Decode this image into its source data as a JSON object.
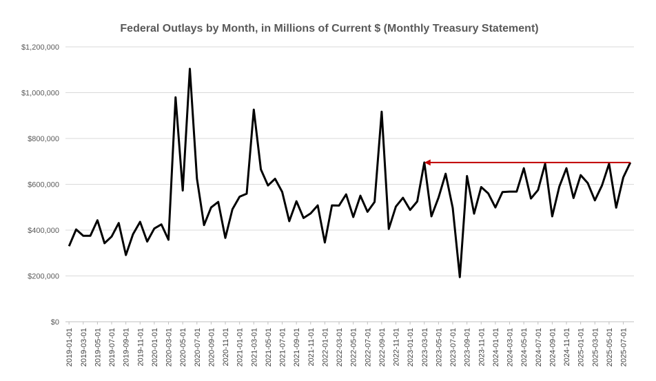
{
  "chart_data": {
    "type": "line",
    "title": "Federal Outlays by Month, in Millions of Current $ (Monthly Treasury Statement)",
    "xlabel": "",
    "ylabel": "",
    "ylim": [
      0,
      1200000
    ],
    "y_ticks": [
      0,
      200000,
      400000,
      600000,
      800000,
      1000000,
      1200000
    ],
    "y_tick_labels": [
      "$0",
      "$200,000",
      "$400,000",
      "$600,000",
      "$800,000",
      "$1,000,000",
      "$1,200,000"
    ],
    "x_tick_labels": [
      "2019-01-01",
      "2019-03-01",
      "2019-05-01",
      "2019-07-01",
      "2019-09-01",
      "2019-11-01",
      "2020-01-01",
      "2020-03-01",
      "2020-05-01",
      "2020-07-01",
      "2020-09-01",
      "2020-11-01",
      "2021-01-01",
      "2021-03-01",
      "2021-05-01",
      "2021-07-01",
      "2021-09-01",
      "2021-11-01",
      "2022-01-01",
      "2022-03-01",
      "2022-05-01",
      "2022-07-01",
      "2022-09-01",
      "2022-11-01",
      "2023-01-01",
      "2023-03-01",
      "2023-05-01",
      "2023-07-01",
      "2023-09-01",
      "2023-11-01",
      "2024-01-01",
      "2024-03-01",
      "2024-05-01",
      "2024-07-01",
      "2024-09-01",
      "2024-11-01",
      "2025-01-01",
      "2025-03-01",
      "2025-05-01",
      "2025-07-01"
    ],
    "gridlines": true,
    "legend": "none",
    "line_color": "#000000",
    "annotation": {
      "type": "arrow",
      "color": "#c00000",
      "from_x": "2025-08-01",
      "to_x": "2023-03-01",
      "y": 695000
    },
    "series": [
      {
        "x": [
          "2019-01-01",
          "2019-02-01",
          "2019-03-01",
          "2019-04-01",
          "2019-05-01",
          "2019-06-01",
          "2019-07-01",
          "2019-08-01",
          "2019-09-01",
          "2019-10-01",
          "2019-11-01",
          "2019-12-01",
          "2020-01-01",
          "2020-02-01",
          "2020-03-01",
          "2020-04-01",
          "2020-05-01",
          "2020-06-01",
          "2020-07-01",
          "2020-08-01",
          "2020-09-01",
          "2020-10-01",
          "2020-11-01",
          "2020-12-01",
          "2021-01-01",
          "2021-02-01",
          "2021-03-01",
          "2021-04-01",
          "2021-05-01",
          "2021-06-01",
          "2021-07-01",
          "2021-08-01",
          "2021-09-01",
          "2021-10-01",
          "2021-11-01",
          "2021-12-01",
          "2022-01-01",
          "2022-02-01",
          "2022-03-01",
          "2022-04-01",
          "2022-05-01",
          "2022-06-01",
          "2022-07-01",
          "2022-08-01",
          "2022-09-01",
          "2022-10-01",
          "2022-11-01",
          "2022-12-01",
          "2023-01-01",
          "2023-02-01",
          "2023-03-01",
          "2023-04-01",
          "2023-05-01",
          "2023-06-01",
          "2023-07-01",
          "2023-08-01",
          "2023-09-01",
          "2023-10-01",
          "2023-11-01",
          "2023-12-01",
          "2024-01-01",
          "2024-02-01",
          "2024-03-01",
          "2024-04-01",
          "2024-05-01",
          "2024-06-01",
          "2024-07-01",
          "2024-08-01",
          "2024-09-01",
          "2024-10-01",
          "2024-11-01",
          "2024-12-01",
          "2025-01-01",
          "2025-02-01",
          "2025-03-01",
          "2025-04-01",
          "2025-05-01",
          "2025-06-01",
          "2025-07-01",
          "2025-08-01"
        ],
        "values": [
          330000,
          403000,
          375000,
          375000,
          443000,
          343000,
          372000,
          431000,
          291000,
          382000,
          436000,
          350000,
          407000,
          425000,
          358000,
          980000,
          573000,
          1104000,
          625000,
          422000,
          499000,
          523000,
          366000,
          491000,
          546000,
          559000,
          926000,
          665000,
          595000,
          624000,
          567000,
          439000,
          526000,
          453000,
          473000,
          508000,
          346000,
          508000,
          507000,
          556000,
          457000,
          550000,
          480000,
          523000,
          917000,
          405000,
          503000,
          541000,
          488000,
          525000,
          695000,
          460000,
          542000,
          646000,
          497000,
          195000,
          636000,
          472000,
          588000,
          560000,
          499000,
          566000,
          568000,
          568000,
          670000,
          538000,
          575000,
          690000,
          460000,
          590000,
          670000,
          540000,
          640000,
          605000,
          530000,
          595000,
          690000,
          498000,
          630000,
          695000
        ]
      }
    ]
  }
}
